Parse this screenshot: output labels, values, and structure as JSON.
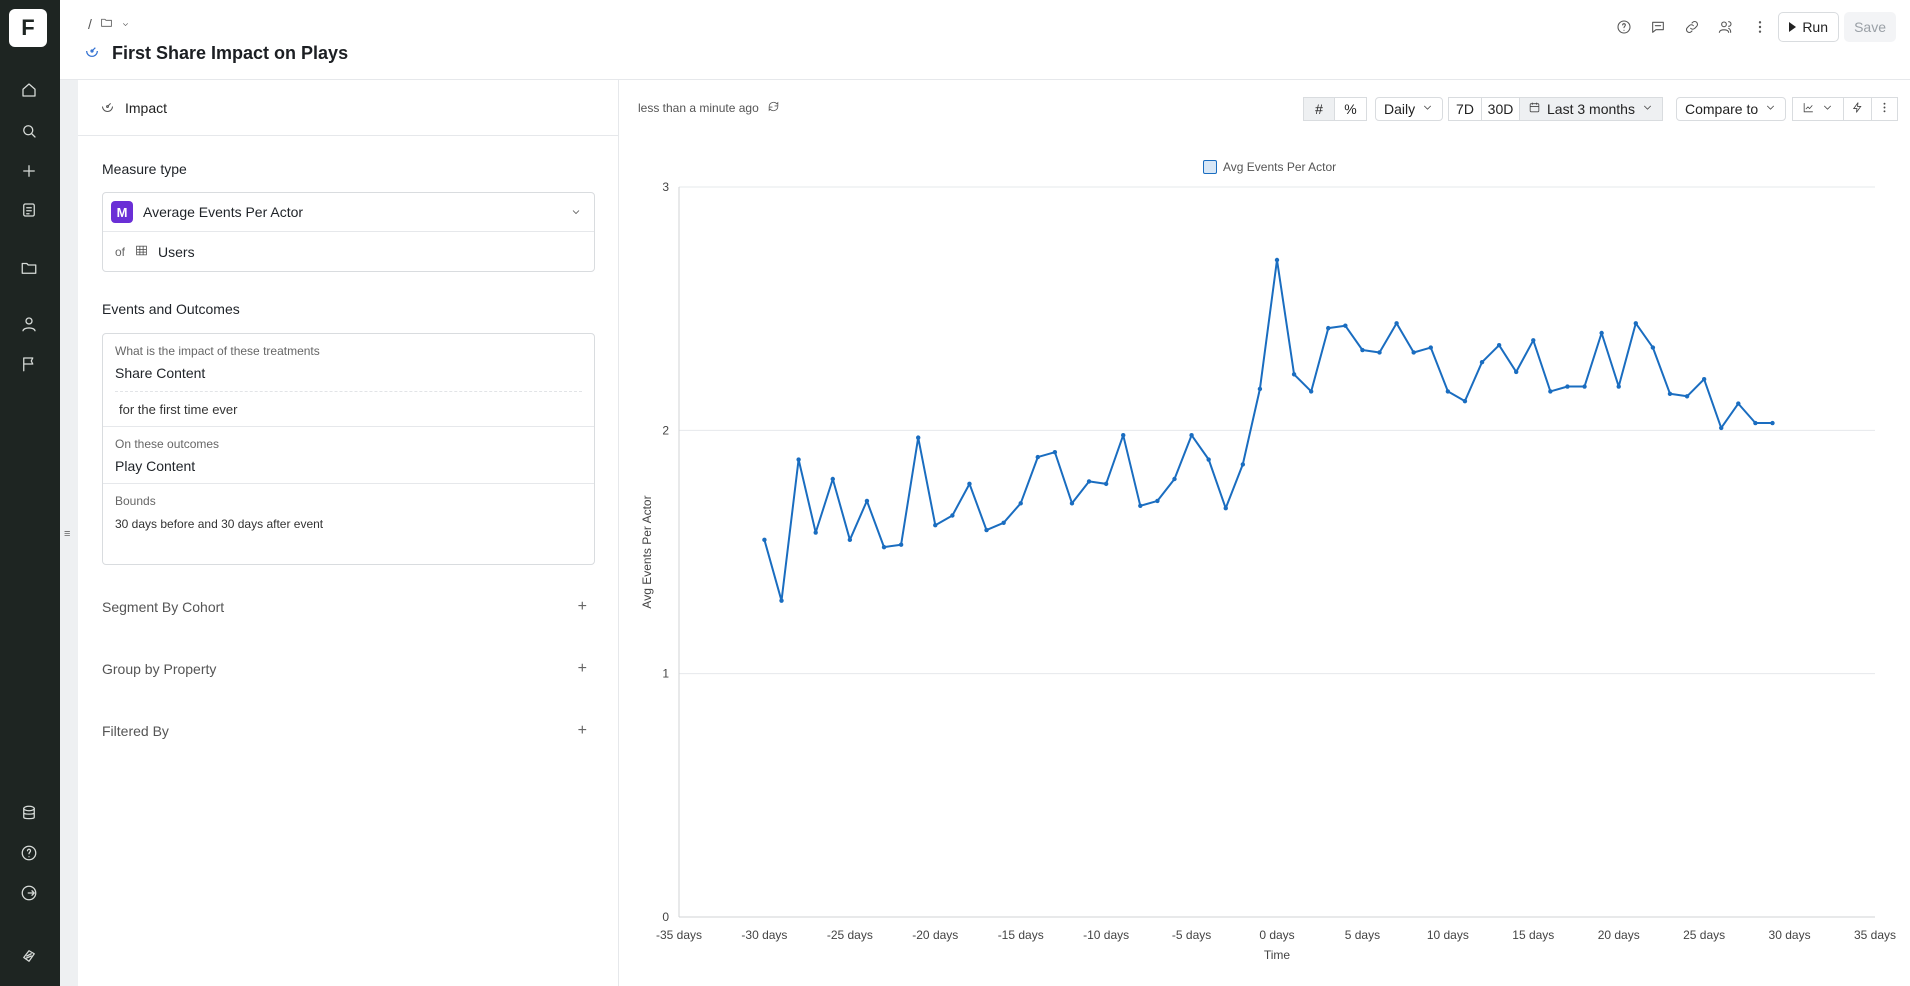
{
  "app": {
    "logo_letter": "F",
    "title": "First Share Impact on Plays",
    "breadcrumb_sep": "/",
    "run_label": "Run",
    "save_label": "Save"
  },
  "rail_icons": [
    "home-icon",
    "search-icon",
    "plus-icon",
    "notebook-icon",
    "folder-icon",
    "user-icon",
    "flag-icon",
    "database-icon",
    "help-icon",
    "logout-icon",
    "brand-icon"
  ],
  "top_icons": [
    "help-icon",
    "comment-icon",
    "link-icon",
    "users-icon",
    "more-vertical-icon"
  ],
  "left": {
    "header": "Impact",
    "measure_type_label": "Measure type",
    "measure": {
      "badge": "M",
      "name": "Average Events Per Actor",
      "of_label": "of",
      "entity": "Users"
    },
    "events_label": "Events and Outcomes",
    "treatment_sub": "What is the impact of these treatments",
    "treatment": "Share Content",
    "treatment_filter": "for the first time ever",
    "outcome_sub": "On these outcomes",
    "outcome": "Play Content",
    "bounds_sub": "Bounds",
    "bounds": "30 days before and 30 days after event",
    "segment": "Segment By Cohort",
    "group": "Group by Property",
    "filtered": "Filtered By",
    "plus": "+"
  },
  "right": {
    "updated": "less than a minute ago",
    "granularity": "Daily",
    "btn_7d": "7D",
    "btn_30d": "30D",
    "range": "Last 3 months",
    "compare": "Compare to"
  },
  "colors": {
    "series": "#1a6dc0",
    "accent": "#6a2fd6",
    "rail": "#1e2522"
  },
  "chart_data": {
    "type": "line",
    "xlabel": "Time",
    "ylabel": "Avg Events Per Actor",
    "ylim": [
      0,
      3
    ],
    "xlim": [
      -35,
      35
    ],
    "y_ticks": [
      "0",
      "1",
      "2",
      "3"
    ],
    "x_ticks": [
      "-35 days",
      "-30 days",
      "-25 days",
      "-20 days",
      "-15 days",
      "-10 days",
      "-5 days",
      "0 days",
      "5 days",
      "10 days",
      "15 days",
      "20 days",
      "25 days",
      "30 days",
      "35 days"
    ],
    "series": [
      {
        "name": "Avg Events Per Actor",
        "x": [
          -30,
          -29,
          -28,
          -27,
          -26,
          -25,
          -24,
          -23,
          -22,
          -21,
          -20,
          -19,
          -18,
          -17,
          -16,
          -15,
          -14,
          -13,
          -12,
          -11,
          -10,
          -9,
          -8,
          -7,
          -6,
          -5,
          -4,
          -3,
          -2,
          -1,
          0,
          1,
          2,
          3,
          4,
          5,
          6,
          7,
          8,
          9,
          10,
          11,
          12,
          13,
          14,
          15,
          16,
          17,
          18,
          19,
          20,
          21,
          22,
          23,
          24,
          25,
          26,
          27,
          28,
          29
        ],
        "values": [
          1.55,
          1.3,
          1.88,
          1.58,
          1.8,
          1.55,
          1.71,
          1.52,
          1.53,
          1.97,
          1.61,
          1.65,
          1.78,
          1.59,
          1.62,
          1.7,
          1.89,
          1.91,
          1.7,
          1.79,
          1.78,
          1.98,
          1.69,
          1.71,
          1.8,
          1.98,
          1.88,
          1.68,
          1.86,
          2.17,
          2.7,
          2.23,
          2.16,
          2.42,
          2.43,
          2.33,
          2.32,
          2.44,
          2.32,
          2.34,
          2.16,
          2.12,
          2.28,
          2.35,
          2.24,
          2.37,
          2.16,
          2.18,
          2.18,
          2.4,
          2.18,
          2.44,
          2.34,
          2.15,
          2.14,
          2.21,
          2.01,
          2.11,
          2.03,
          2.03
        ]
      }
    ]
  }
}
